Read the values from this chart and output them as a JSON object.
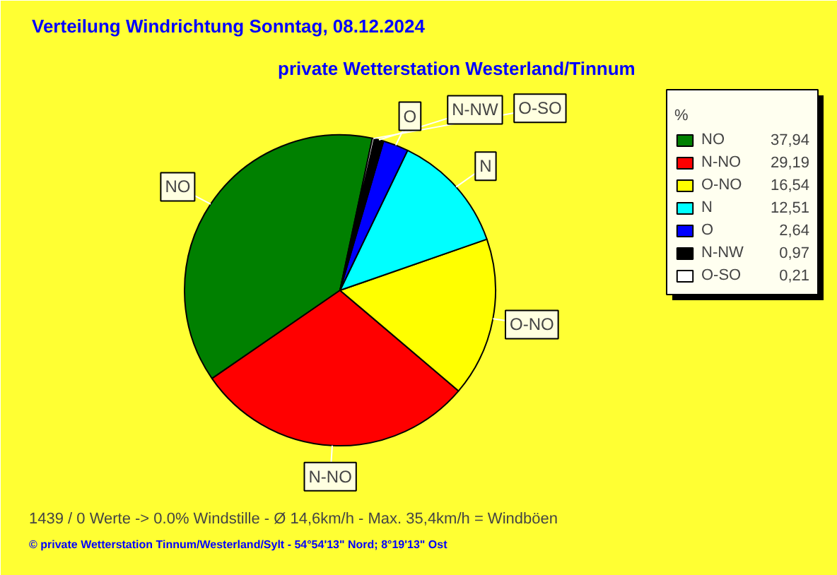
{
  "chart_data": {
    "type": "pie",
    "title": "Verteilung Windrichtung   Sonntag, 08.12.2024",
    "subtitle": "private Wetterstation Westerland/Tinnum",
    "categories": [
      "NO",
      "N-NO",
      "O-NO",
      "N",
      "O",
      "N-NW",
      "O-SO"
    ],
    "values": [
      37.94,
      29.19,
      16.54,
      12.51,
      2.64,
      0.97,
      0.21
    ],
    "colors": [
      "#008000",
      "#ff0000",
      "#ffff00",
      "#00ffff",
      "#0000ff",
      "#000000",
      "#ffffff"
    ],
    "value_labels": [
      "37,94",
      "29,19",
      "16,54",
      "12,51",
      "2,64",
      "0,97",
      "0,21"
    ],
    "legend": "top right",
    "legend_title": "%",
    "annotations": [
      "1439 / 0 Werte  -> 0.0% Windstille   -   Ø 14,6km/h  -  Max. 35,4km/h = Windböen",
      "© private Wetterstation Tinnum/Westerland/Sylt   -   54°54'13\" Nord; 8°19'13\" Ost"
    ]
  }
}
